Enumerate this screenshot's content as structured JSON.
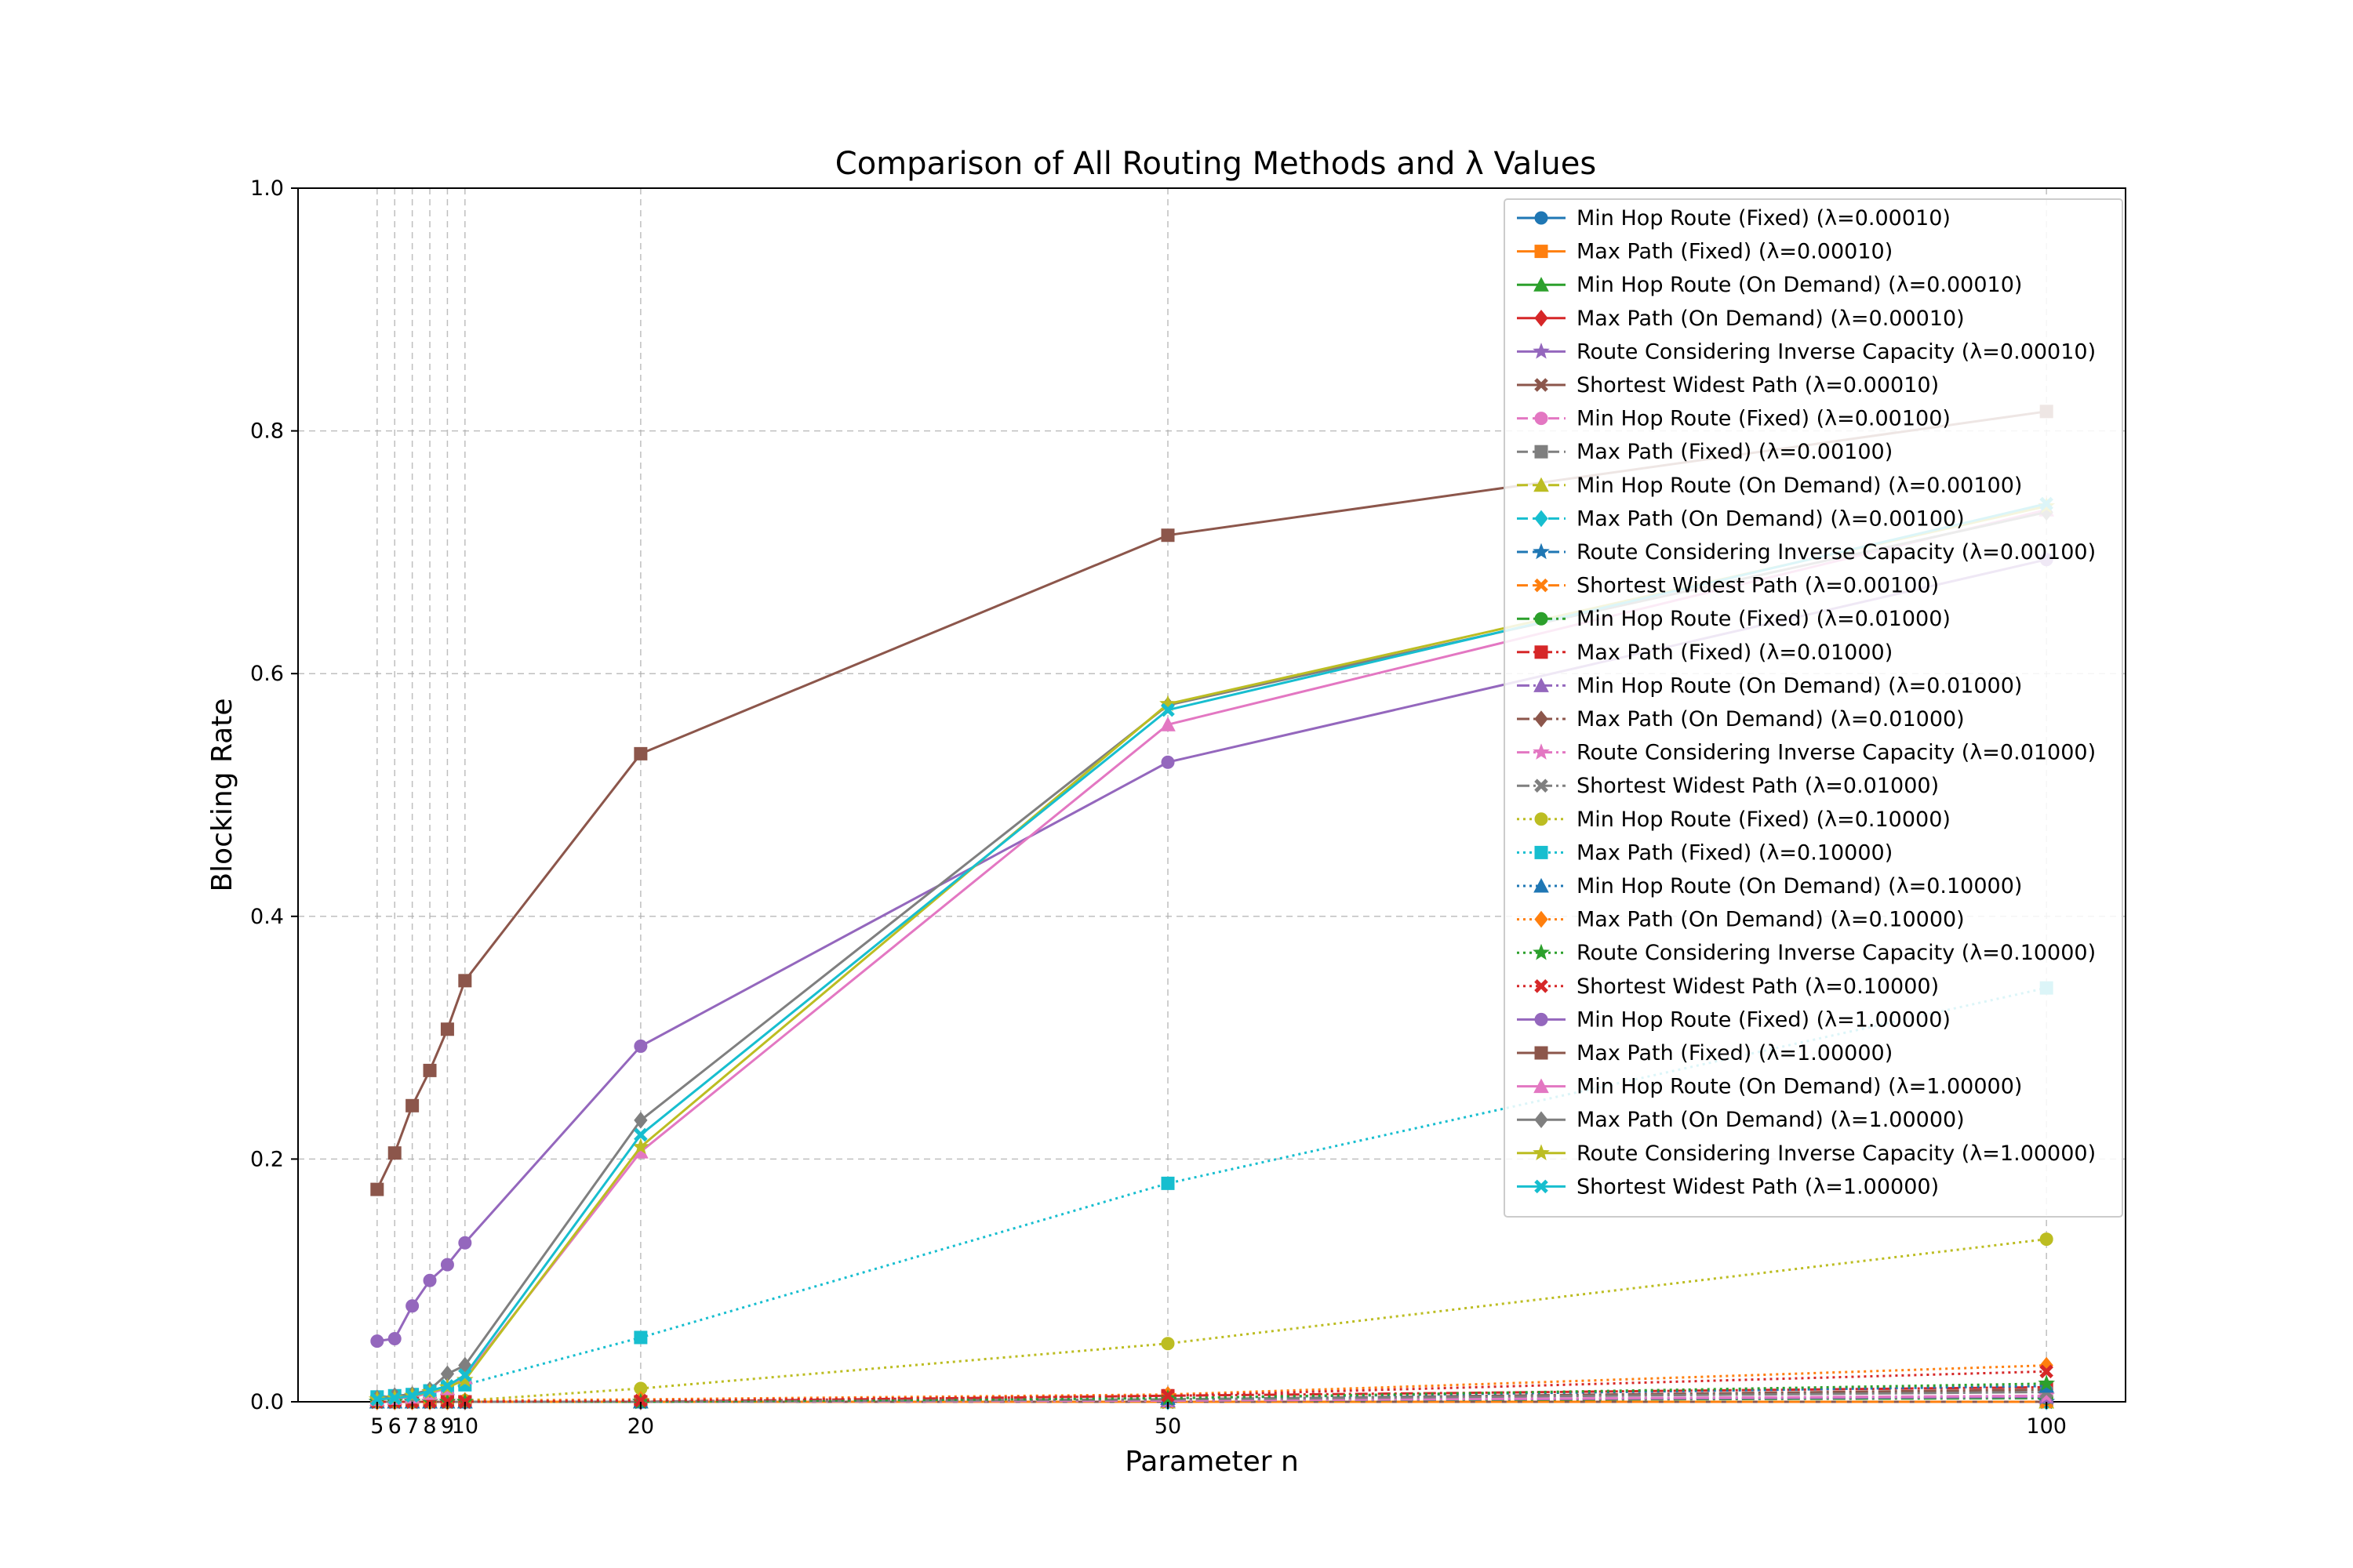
{
  "chart_data": {
    "type": "line",
    "title": "Comparison of All Routing Methods and λ Values",
    "xlabel": "Parameter n",
    "ylabel": "Blocking Rate",
    "x": [
      5,
      6,
      7,
      8,
      9,
      10,
      20,
      50,
      100
    ],
    "xticks": [
      "5",
      "6",
      "7",
      "8",
      "9",
      "10",
      "20",
      "50",
      "100"
    ],
    "yticks": [
      "0.0",
      "0.2",
      "0.4",
      "0.6",
      "0.8",
      "1.0"
    ],
    "xlim": [
      0.5,
      104.5
    ],
    "ylim": [
      0,
      1
    ],
    "grid": true,
    "legend_position": "upper right",
    "series": [
      {
        "name": "Min Hop Route (Fixed) (λ=0.00010)",
        "color": "#1f77b4",
        "marker": "circle",
        "dash": "solid",
        "values": [
          0,
          0,
          0,
          0,
          0,
          0,
          0,
          0,
          0
        ]
      },
      {
        "name": "Max Path (Fixed) (λ=0.00010)",
        "color": "#ff7f0e",
        "marker": "square",
        "dash": "solid",
        "values": [
          0,
          0,
          0,
          0,
          0,
          0,
          0,
          0,
          0
        ]
      },
      {
        "name": "Min Hop Route (On Demand) (λ=0.00010)",
        "color": "#2ca02c",
        "marker": "triangle",
        "dash": "solid",
        "values": [
          0,
          0,
          0,
          0,
          0,
          0,
          0,
          0,
          0
        ]
      },
      {
        "name": "Max Path (On Demand) (λ=0.00010)",
        "color": "#d62728",
        "marker": "diamond",
        "dash": "solid",
        "values": [
          0,
          0,
          0,
          0,
          0,
          0,
          0,
          0,
          0
        ]
      },
      {
        "name": "Route Considering Inverse Capacity (λ=0.00010)",
        "color": "#9467bd",
        "marker": "star",
        "dash": "solid",
        "values": [
          0,
          0,
          0,
          0,
          0,
          0,
          0,
          0,
          0
        ]
      },
      {
        "name": "Shortest Widest Path (λ=0.00010)",
        "color": "#8c564b",
        "marker": "x",
        "dash": "solid",
        "values": [
          0,
          0,
          0,
          0,
          0,
          0,
          0,
          0,
          0
        ]
      },
      {
        "name": "Min Hop Route (Fixed) (λ=0.00100)",
        "color": "#e377c2",
        "marker": "circle",
        "dash": "dashed",
        "values": [
          0,
          0,
          0,
          0,
          0,
          0,
          0,
          0,
          0
        ]
      },
      {
        "name": "Max Path (Fixed) (λ=0.00100)",
        "color": "#7f7f7f",
        "marker": "square",
        "dash": "dashed",
        "values": [
          0,
          0,
          0,
          0,
          0,
          0,
          0,
          0,
          0
        ]
      },
      {
        "name": "Min Hop Route (On Demand) (λ=0.00100)",
        "color": "#bcbd22",
        "marker": "triangle",
        "dash": "dashed",
        "values": [
          0,
          0,
          0,
          0,
          0,
          0,
          0,
          0,
          0
        ]
      },
      {
        "name": "Max Path (On Demand) (λ=0.00100)",
        "color": "#17becf",
        "marker": "diamond",
        "dash": "dashed",
        "values": [
          0,
          0,
          0,
          0,
          0,
          0,
          0,
          0,
          0
        ]
      },
      {
        "name": "Route Considering Inverse Capacity (λ=0.00100)",
        "color": "#1f77b4",
        "marker": "star",
        "dash": "dashed",
        "values": [
          0,
          0,
          0,
          0,
          0,
          0,
          0,
          0,
          0
        ]
      },
      {
        "name": "Shortest Widest Path (λ=0.00100)",
        "color": "#ff7f0e",
        "marker": "x",
        "dash": "dashed",
        "values": [
          0,
          0,
          0,
          0,
          0,
          0,
          0,
          0,
          0
        ]
      },
      {
        "name": "Min Hop Route (Fixed) (λ=0.01000)",
        "color": "#2ca02c",
        "marker": "circle",
        "dash": "dashdot",
        "values": [
          0,
          0,
          0,
          0,
          0,
          0,
          0,
          0.001,
          0.003
        ]
      },
      {
        "name": "Max Path (Fixed) (λ=0.01000)",
        "color": "#d62728",
        "marker": "square",
        "dash": "dashdot",
        "values": [
          0,
          0,
          0,
          0,
          0,
          0,
          0,
          0.005,
          0.012
        ]
      },
      {
        "name": "Min Hop Route (On Demand) (λ=0.01000)",
        "color": "#9467bd",
        "marker": "triangle",
        "dash": "dashdot",
        "values": [
          0,
          0,
          0,
          0,
          0,
          0,
          0,
          0.001,
          0.004
        ]
      },
      {
        "name": "Max Path (On Demand) (λ=0.01000)",
        "color": "#8c564b",
        "marker": "diamond",
        "dash": "dashdot",
        "values": [
          0,
          0,
          0,
          0,
          0,
          0,
          0,
          0.002,
          0.01
        ]
      },
      {
        "name": "Route Considering Inverse Capacity (λ=0.01000)",
        "color": "#e377c2",
        "marker": "star",
        "dash": "dashdot",
        "values": [
          0,
          0,
          0,
          0,
          0,
          0,
          0,
          0.001,
          0.005
        ]
      },
      {
        "name": "Shortest Widest Path (λ=0.01000)",
        "color": "#7f7f7f",
        "marker": "x",
        "dash": "dashdot",
        "values": [
          0,
          0,
          0,
          0,
          0,
          0,
          0,
          0.002,
          0.008
        ]
      },
      {
        "name": "Min Hop Route (Fixed) (λ=0.10000)",
        "color": "#bcbd22",
        "marker": "circle",
        "dash": "dotted",
        "values": [
          0,
          0,
          0,
          0,
          0,
          0.001,
          0.011,
          0.048,
          0.134
        ]
      },
      {
        "name": "Max Path (Fixed) (λ=0.10000)",
        "color": "#17becf",
        "marker": "square",
        "dash": "dotted",
        "values": [
          0.004,
          0.005,
          0.006,
          0.009,
          0.011,
          0.014,
          0.053,
          0.18,
          0.341
        ]
      },
      {
        "name": "Min Hop Route (On Demand) (λ=0.10000)",
        "color": "#1f77b4",
        "marker": "triangle",
        "dash": "dotted",
        "values": [
          0,
          0,
          0,
          0,
          0,
          0,
          0,
          0.003,
          0.013
        ]
      },
      {
        "name": "Max Path (On Demand) (λ=0.10000)",
        "color": "#ff7f0e",
        "marker": "diamond",
        "dash": "dotted",
        "values": [
          0,
          0,
          0,
          0,
          0,
          0.001,
          0.002,
          0.006,
          0.03
        ]
      },
      {
        "name": "Route Considering Inverse Capacity (λ=0.10000)",
        "color": "#2ca02c",
        "marker": "star",
        "dash": "dotted",
        "values": [
          0,
          0,
          0,
          0,
          0,
          0,
          0,
          0.003,
          0.015
        ]
      },
      {
        "name": "Shortest Widest Path (λ=0.10000)",
        "color": "#d62728",
        "marker": "x",
        "dash": "dotted",
        "values": [
          0,
          0,
          0,
          0,
          0,
          0,
          0.001,
          0.005,
          0.025
        ]
      },
      {
        "name": "Min Hop Route (Fixed) (λ=1.00000)",
        "color": "#9467bd",
        "marker": "circle",
        "dash": "solid",
        "values": [
          0.05,
          0.052,
          0.079,
          0.1,
          0.113,
          0.131,
          0.293,
          0.527,
          0.694
        ]
      },
      {
        "name": "Max Path (Fixed) (λ=1.00000)",
        "color": "#8c564b",
        "marker": "square",
        "dash": "solid",
        "values": [
          0.175,
          0.205,
          0.244,
          0.273,
          0.307,
          0.347,
          0.534,
          0.714,
          0.816
        ]
      },
      {
        "name": "Min Hop Route (On Demand) (λ=1.00000)",
        "color": "#e377c2",
        "marker": "triangle",
        "dash": "solid",
        "values": [
          0.002,
          0.003,
          0.004,
          0.007,
          0.011,
          0.02,
          0.206,
          0.558,
          0.735
        ]
      },
      {
        "name": "Max Path (On Demand) (λ=1.00000)",
        "color": "#7f7f7f",
        "marker": "diamond",
        "dash": "solid",
        "values": [
          0.003,
          0.005,
          0.006,
          0.01,
          0.023,
          0.03,
          0.232,
          0.574,
          0.733
        ]
      },
      {
        "name": "Route Considering Inverse Capacity (λ=1.00000)",
        "color": "#bcbd22",
        "marker": "star",
        "dash": "solid",
        "values": [
          0.002,
          0.003,
          0.005,
          0.008,
          0.012,
          0.018,
          0.21,
          0.575,
          0.738
        ]
      },
      {
        "name": "Shortest Widest Path (λ=1.00000)",
        "color": "#17becf",
        "marker": "x",
        "dash": "solid",
        "values": [
          0.002,
          0.003,
          0.005,
          0.009,
          0.013,
          0.022,
          0.22,
          0.57,
          0.74
        ]
      }
    ]
  }
}
